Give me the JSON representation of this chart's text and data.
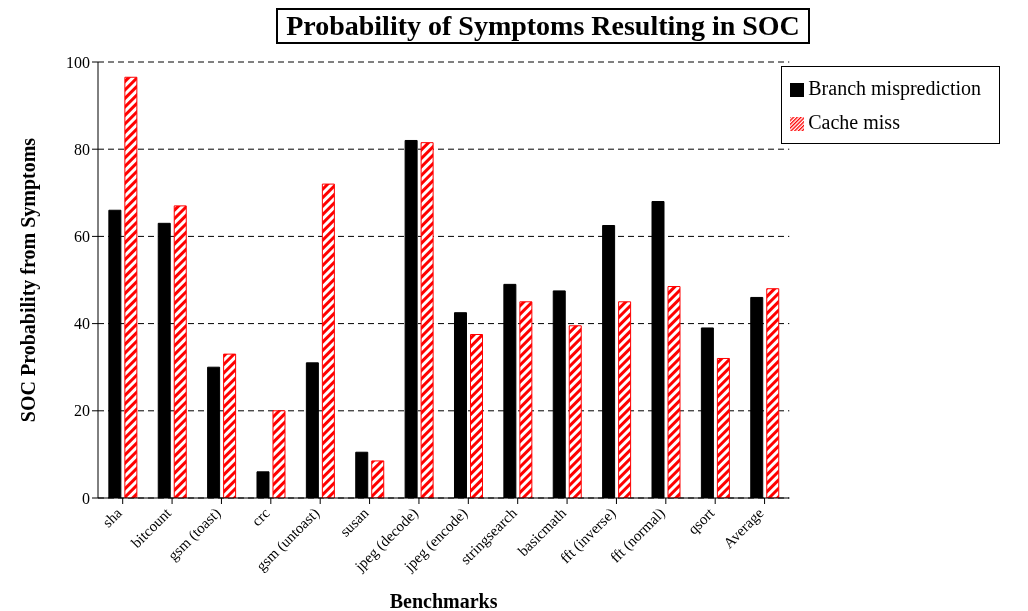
{
  "chart_data": {
    "type": "bar",
    "title": "Probability of  Symptoms Resulting in SOC",
    "xlabel": "Benchmarks",
    "ylabel": "SOC Probability from  Symptoms",
    "categories": [
      "sha",
      "bitcount",
      "gsm (toast)",
      "crc",
      "gsm (untoast)",
      "susan",
      "jpeg (decode)",
      "jpeg (encode)",
      "stringsearch",
      "basicmath",
      "fft (inverse)",
      "fft (normal)",
      "qsort",
      "Average"
    ],
    "series": [
      {
        "name": "Branch misprediction",
        "color": "#000000",
        "values": [
          66,
          63,
          30,
          6,
          31,
          10.5,
          82,
          42.5,
          49,
          47.5,
          62.5,
          68,
          39,
          46
        ]
      },
      {
        "name": "Cache miss",
        "color": "#ff0000",
        "values": [
          96.5,
          67,
          33,
          20,
          72,
          8.5,
          81.5,
          37.5,
          45,
          39.5,
          45,
          48.5,
          32,
          48
        ]
      }
    ],
    "ylim": [
      0,
      100
    ],
    "yticks": [
      0,
      20,
      40,
      60,
      80,
      100
    ],
    "grid": "y",
    "legend": "top right"
  }
}
